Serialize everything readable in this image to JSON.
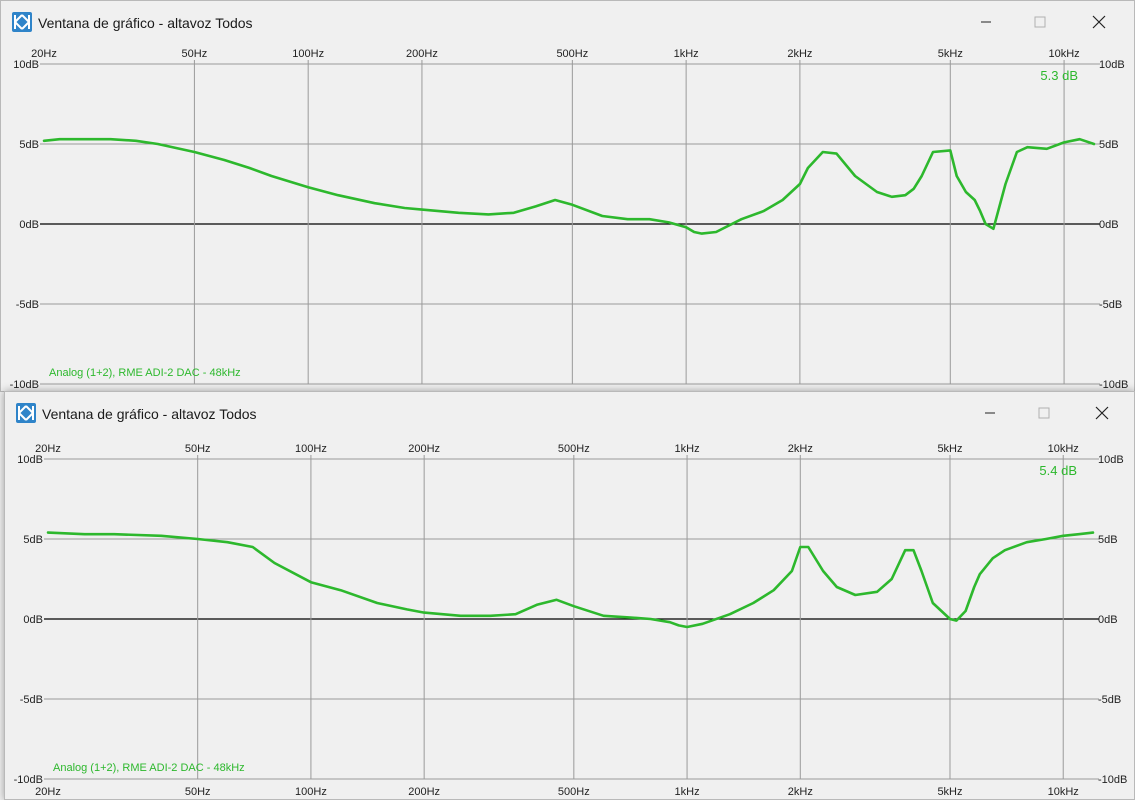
{
  "windows": [
    {
      "title": "Ventana de gráfico - altavoz Todos",
      "peak_label": "5.3 dB",
      "info_label": "Analog (1+2), RME ADI-2 DAC - 48kHz",
      "x_tick_labels": [
        "20Hz",
        "50Hz",
        "100Hz",
        "200Hz",
        "500Hz",
        "1kHz",
        "2kHz",
        "5kHz",
        "10kHz"
      ],
      "y_tick_labels": [
        "10dB",
        "5dB",
        "0dB",
        "-5dB",
        "-10dB"
      ]
    },
    {
      "title": "Ventana de gráfico - altavoz Todos",
      "peak_label": "5.4 dB",
      "info_label": "Analog (1+2), RME ADI-2 DAC - 48kHz",
      "x_tick_labels": [
        "20Hz",
        "50Hz",
        "100Hz",
        "200Hz",
        "500Hz",
        "1kHz",
        "2kHz",
        "5kHz",
        "10kHz"
      ],
      "y_tick_labels": [
        "10dB",
        "5dB",
        "0dB",
        "-5dB",
        "-10dB"
      ]
    }
  ],
  "colors": {
    "curve": "#2db82d",
    "grid": "#9a9a9a",
    "zero_line": "#000000",
    "plot_bg": "#f0f0f0"
  },
  "chart_data": [
    {
      "type": "line",
      "title": "",
      "xlabel": "",
      "ylabel": "",
      "x_scale": "log",
      "xlim": [
        20,
        12000
      ],
      "ylim": [
        -10,
        10
      ],
      "x_ticks": [
        20,
        50,
        100,
        200,
        500,
        1000,
        2000,
        5000,
        10000
      ],
      "y_ticks": [
        10,
        5,
        0,
        -5,
        -10
      ],
      "grid": true,
      "series": [
        {
          "x": [
            20,
            22,
            25,
            30,
            35,
            40,
            50,
            60,
            70,
            80,
            100,
            120,
            150,
            180,
            200,
            250,
            300,
            350,
            400,
            450,
            500,
            600,
            700,
            800,
            900,
            1000,
            1050,
            1100,
            1200,
            1400,
            1600,
            1800,
            2000,
            2100,
            2300,
            2500,
            2800,
            3200,
            3500,
            3800,
            4000,
            4200,
            4500,
            5000,
            5200,
            5500,
            5800,
            6000,
            6200,
            6500,
            7000,
            7500,
            8000,
            9000,
            10000,
            11000,
            12000
          ],
          "y": [
            5.2,
            5.3,
            5.3,
            5.3,
            5.2,
            5.0,
            4.5,
            4.0,
            3.5,
            3.0,
            2.3,
            1.8,
            1.3,
            1.0,
            0.9,
            0.7,
            0.6,
            0.7,
            1.1,
            1.5,
            1.2,
            0.5,
            0.3,
            0.3,
            0.1,
            -0.2,
            -0.5,
            -0.6,
            -0.5,
            0.3,
            0.8,
            1.5,
            2.5,
            3.5,
            4.5,
            4.4,
            3.0,
            2.0,
            1.7,
            1.8,
            2.2,
            3.0,
            4.5,
            4.6,
            3.0,
            2.0,
            1.5,
            0.8,
            0.0,
            -0.3,
            2.5,
            4.5,
            4.8,
            4.7,
            5.1,
            5.3,
            5.0
          ]
        }
      ]
    },
    {
      "type": "line",
      "title": "",
      "xlabel": "",
      "ylabel": "",
      "x_scale": "log",
      "xlim": [
        20,
        12000
      ],
      "ylim": [
        -10,
        10
      ],
      "x_ticks": [
        20,
        50,
        100,
        200,
        500,
        1000,
        2000,
        5000,
        10000
      ],
      "y_ticks": [
        10,
        5,
        0,
        -5,
        -10
      ],
      "grid": true,
      "series": [
        {
          "x": [
            20,
            25,
            30,
            40,
            50,
            60,
            70,
            80,
            100,
            120,
            150,
            180,
            200,
            250,
            300,
            350,
            400,
            450,
            500,
            600,
            700,
            800,
            900,
            950,
            1000,
            1100,
            1300,
            1500,
            1700,
            1900,
            2000,
            2100,
            2300,
            2500,
            2800,
            3200,
            3500,
            3800,
            4000,
            4200,
            4500,
            5000,
            5200,
            5500,
            5800,
            6000,
            6500,
            7000,
            8000,
            9000,
            10000,
            11000,
            12000
          ],
          "y": [
            5.4,
            5.3,
            5.3,
            5.2,
            5.0,
            4.8,
            4.5,
            3.5,
            2.3,
            1.8,
            1.0,
            0.6,
            0.4,
            0.2,
            0.2,
            0.3,
            0.9,
            1.2,
            0.8,
            0.2,
            0.1,
            0.0,
            -0.2,
            -0.4,
            -0.5,
            -0.3,
            0.3,
            1.0,
            1.8,
            3.0,
            4.5,
            4.5,
            3.0,
            2.0,
            1.5,
            1.7,
            2.5,
            4.3,
            4.3,
            3.0,
            1.0,
            0.0,
            -0.1,
            0.5,
            2.0,
            2.8,
            3.8,
            4.3,
            4.8,
            5.0,
            5.2,
            5.3,
            5.4
          ]
        }
      ]
    }
  ]
}
